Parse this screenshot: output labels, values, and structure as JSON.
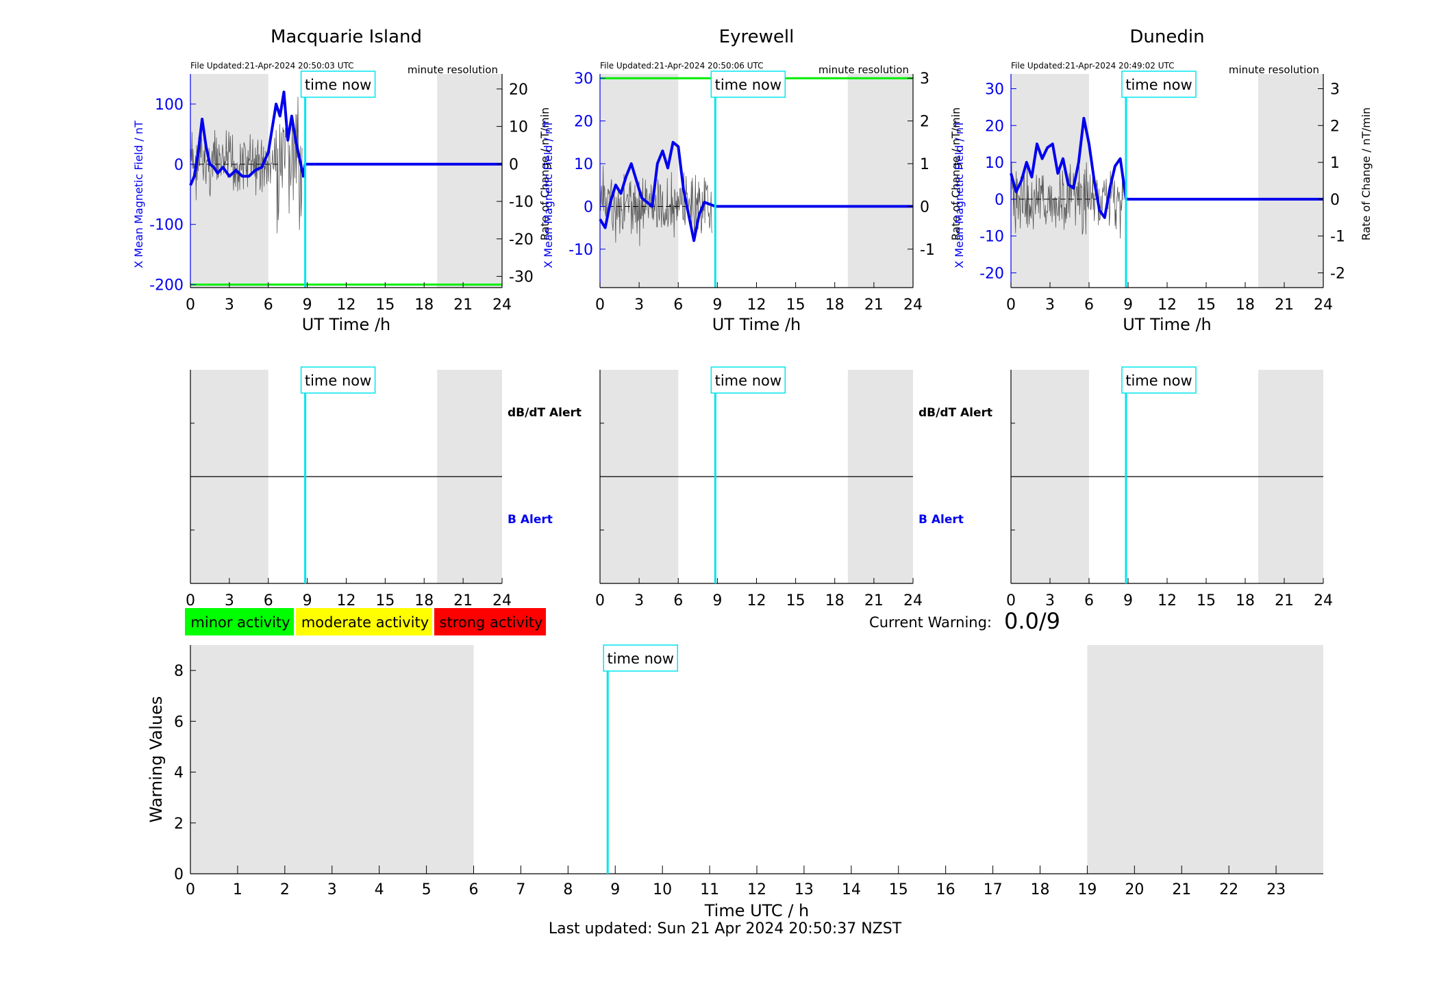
{
  "stations": [
    {
      "title": "Macquarie Island",
      "file_updated": "File Updated:21-Apr-2024 20:50:03 UTC",
      "resolution": "minute resolution",
      "ylabel_left": "X Mean Magnetic Field / nT",
      "ylabel_right": "Rate of Change / nT/min",
      "xlabel": "UT Time /h",
      "left_ticks": [
        -200,
        -100,
        0,
        100
      ],
      "right_ticks": [
        -30,
        -20,
        -10,
        0,
        10,
        20
      ]
    },
    {
      "title": "Eyrewell",
      "file_updated": "File Updated:21-Apr-2024 20:50:06 UTC",
      "resolution": "minute resolution",
      "ylabel_left": "X Mean Magnetic Field / nT",
      "ylabel_right": "Rate of Change / nT/min",
      "xlabel": "UT Time /h",
      "left_ticks": [
        -10,
        0,
        10,
        20,
        30
      ],
      "right_ticks": [
        -1,
        0,
        1,
        2,
        3
      ]
    },
    {
      "title": "Dunedin",
      "file_updated": "File Updated:21-Apr-2024 20:49:02 UTC",
      "resolution": "minute resolution",
      "ylabel_left": "X Mean Magnetic Field / nT",
      "ylabel_right": "Rate of Change / nT/min",
      "xlabel": "UT Time /h",
      "left_ticks": [
        -20,
        -10,
        0,
        10,
        20,
        30
      ],
      "right_ticks": [
        -2,
        -1,
        0,
        1,
        2,
        3
      ]
    }
  ],
  "time_now_label": "time now",
  "time_now_hour": 8.84,
  "alerts": {
    "dbdt_label": "dB/dT Alert",
    "b_label": "B Alert"
  },
  "legend": {
    "minor": "minor activity",
    "moderate": "moderate activity",
    "strong": "strong activity"
  },
  "current_warning": {
    "label": "Current Warning:",
    "value": "0.0/9"
  },
  "warning_panel": {
    "ylabel": "Warning Values",
    "xlabel": "Time UTC / h",
    "yticks": [
      0,
      2,
      4,
      6,
      8
    ]
  },
  "footer": "Last updated: Sun 21 Apr 2024 20:50:37 NZST",
  "colors": {
    "field": "#0000ee",
    "rate": "#555555",
    "threshold": "#00ee00",
    "time_now": "#00e5ee",
    "night": "#e5e5e5",
    "minor": "#00ff00",
    "moderate": "#ffff00",
    "strong": "#ff0000"
  },
  "chart_data": [
    {
      "type": "line",
      "title": "Macquarie Island",
      "x_range": [
        0,
        24
      ],
      "ylim_left": [
        -205,
        150
      ],
      "ylim_right": [
        -33,
        24
      ],
      "night_shading_hours": [
        [
          0,
          6
        ],
        [
          19,
          24
        ]
      ],
      "threshold_left": -200,
      "xticks": [
        0,
        3,
        6,
        9,
        12,
        15,
        18,
        21,
        24
      ],
      "series": [
        {
          "axis": "left",
          "x": [
            0,
            0.3,
            0.6,
            0.9,
            1.2,
            1.5,
            1.8,
            2.1,
            2.5,
            3,
            3.5,
            4,
            4.5,
            5,
            5.5,
            6,
            6.3,
            6.6,
            6.9,
            7.2,
            7.5,
            7.8,
            8.1,
            8.4,
            8.7,
            8.84,
            24
          ],
          "y": [
            -35,
            -20,
            20,
            75,
            30,
            0,
            -5,
            -15,
            -5,
            -20,
            -10,
            -20,
            -20,
            -10,
            -5,
            20,
            60,
            100,
            80,
            120,
            40,
            80,
            40,
            10,
            -20,
            0,
            0
          ]
        }
      ]
    },
    {
      "type": "line",
      "title": "Eyrewell",
      "x_range": [
        0,
        24
      ],
      "ylim_left": [
        -19,
        31
      ],
      "ylim_right": [
        -1.9,
        3.1
      ],
      "night_shading_hours": [
        [
          0,
          6
        ],
        [
          19,
          24
        ]
      ],
      "threshold_left": 30,
      "xticks": [
        0,
        3,
        6,
        9,
        12,
        15,
        18,
        21,
        24
      ],
      "series": [
        {
          "axis": "left",
          "x": [
            0,
            0.4,
            0.8,
            1.2,
            1.6,
            2,
            2.4,
            2.8,
            3.2,
            3.6,
            4,
            4.4,
            4.8,
            5.2,
            5.6,
            6,
            6.4,
            6.8,
            7.2,
            7.6,
            8,
            8.84,
            24
          ],
          "y": [
            -3,
            -5,
            1,
            5,
            3,
            7,
            10,
            6,
            2,
            1,
            0,
            10,
            13,
            9,
            15,
            14,
            4,
            -2,
            -8,
            -2,
            1,
            0,
            0
          ]
        }
      ]
    },
    {
      "type": "line",
      "title": "Dunedin",
      "x_range": [
        0,
        24
      ],
      "ylim_left": [
        -24,
        34
      ],
      "ylim_right": [
        -2.4,
        3.4
      ],
      "night_shading_hours": [
        [
          0,
          6
        ],
        [
          19,
          24
        ]
      ],
      "xticks": [
        0,
        3,
        6,
        9,
        12,
        15,
        18,
        21,
        24
      ],
      "series": [
        {
          "axis": "left",
          "x": [
            0,
            0.4,
            0.8,
            1.2,
            1.6,
            2,
            2.4,
            2.8,
            3.2,
            3.6,
            4,
            4.4,
            4.8,
            5.2,
            5.6,
            6,
            6.4,
            6.8,
            7.2,
            7.6,
            8,
            8.4,
            8.84,
            24
          ],
          "y": [
            7,
            2,
            5,
            10,
            6,
            15,
            11,
            14,
            15,
            7,
            11,
            4,
            3,
            10,
            22,
            15,
            5,
            -3,
            -5,
            3,
            9,
            11,
            0,
            0
          ]
        }
      ]
    },
    {
      "type": "line",
      "title": "",
      "x_range": [
        0,
        24
      ],
      "ylim": [
        0,
        9
      ],
      "night_shading_hours": [
        [
          0,
          6
        ],
        [
          19,
          24
        ]
      ],
      "xticks": [
        0,
        1,
        2,
        3,
        4,
        5,
        6,
        7,
        8,
        9,
        10,
        11,
        12,
        13,
        14,
        15,
        16,
        17,
        18,
        19,
        20,
        21,
        22,
        23
      ],
      "series": [
        {
          "x": [
            8.84
          ],
          "y": [
            0
          ]
        }
      ]
    }
  ]
}
